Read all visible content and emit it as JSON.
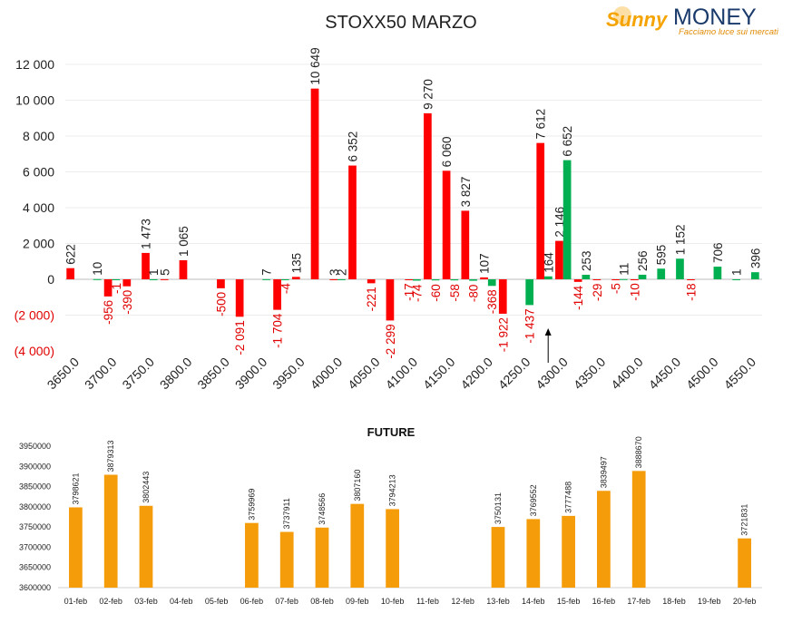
{
  "title": "STOXX50 MARZO",
  "logo": {
    "brand_a": "Sunny",
    "brand_b": "MONEY",
    "tagline": "Facciamo luce sui mercati",
    "color_a": "#f5a300",
    "color_b": "#1a3a6b"
  },
  "colors": {
    "call": "#ff0000",
    "put": "#00b050",
    "negative_axis": "#e00000",
    "future": "#f59c0b"
  },
  "chart_data": [
    {
      "type": "bar",
      "title": "STOXX50 MARZO",
      "ylim": [
        -4000,
        12000
      ],
      "y_ticks": [
        "12 000",
        "10 000",
        "8 000",
        "6 000",
        "4 000",
        "2 000",
        "0",
        "(2 000)",
        "(4 000)"
      ],
      "y_tick_values": [
        12000,
        10000,
        8000,
        6000,
        4000,
        2000,
        0,
        -2000,
        -4000
      ],
      "x_ticks": [
        "3650.0",
        "3700.0",
        "3750.0",
        "3800.0",
        "3850.0",
        "3900.0",
        "3950.0",
        "4000.0",
        "4050.0",
        "4100.0",
        "4150.0",
        "4200.0",
        "4250.0",
        "4300.0",
        "4350.0",
        "4400.0",
        "4450.0",
        "4500.0",
        "4550.0"
      ],
      "categories": [
        3650,
        3675,
        3700,
        3725,
        3750,
        3775,
        3800,
        3825,
        3850,
        3875,
        3900,
        3925,
        3950,
        3975,
        4000,
        4025,
        4050,
        4075,
        4100,
        4125,
        4150,
        4175,
        4200,
        4225,
        4250,
        4275,
        4300,
        4325,
        4350,
        4375,
        4400,
        4425,
        4450,
        4475,
        4500,
        4525,
        4550
      ],
      "series": [
        {
          "color": "#ff0000",
          "labels": [
            "622",
            "",
            "-956",
            "-390",
            "1 473",
            "5",
            "1 065",
            "",
            "-500",
            "-2 091",
            "",
            "-1 704",
            "135",
            "10 649",
            "3",
            "6 352",
            "-221",
            "-2 299",
            "-17",
            "9 270",
            "6 060",
            "3 827",
            "107",
            "-1 922",
            "",
            "7 612",
            "2 146",
            "-144",
            "-29",
            "-5",
            "-10",
            "",
            "",
            "-18",
            "",
            "",
            ""
          ],
          "values": [
            622,
            0,
            -956,
            -390,
            1473,
            5,
            1065,
            0,
            -500,
            -2091,
            0,
            -1704,
            135,
            10649,
            3,
            6352,
            -221,
            -2299,
            -17,
            9270,
            6060,
            3827,
            107,
            -1922,
            0,
            7612,
            2146,
            -144,
            -29,
            -5,
            -10,
            0,
            0,
            -18,
            0,
            0,
            0
          ]
        },
        {
          "color": "#00b050",
          "labels": [
            "",
            "10",
            "-1",
            "",
            "1",
            "",
            "",
            "",
            "",
            "",
            "7",
            "-4",
            "",
            "",
            "2",
            "",
            "",
            "",
            "-74",
            "-60",
            "-58",
            "-80",
            "-368",
            "",
            "-1 437",
            "164",
            "6 652",
            "253",
            "",
            "11",
            "256",
            "595",
            "1 152",
            "",
            "706",
            "1",
            "396"
          ],
          "values": [
            0,
            10,
            -1,
            0,
            1,
            0,
            0,
            0,
            0,
            0,
            7,
            -4,
            0,
            0,
            2,
            0,
            0,
            0,
            -74,
            -60,
            -58,
            -80,
            -368,
            0,
            -1437,
            164,
            6652,
            253,
            0,
            11,
            256,
            595,
            1152,
            0,
            706,
            1,
            396
          ]
        }
      ],
      "marker_note": "arrow at 4280",
      "marker_x": 4280
    },
    {
      "type": "bar",
      "title": "FUTURE",
      "ylim": [
        3600000,
        3950000
      ],
      "y_ticks": [
        "3950000",
        "3900000",
        "3850000",
        "3800000",
        "3750000",
        "3700000",
        "3650000",
        "3600000"
      ],
      "y_tick_values": [
        3950000,
        3900000,
        3850000,
        3800000,
        3750000,
        3700000,
        3650000,
        3600000
      ],
      "categories": [
        "01-feb",
        "02-feb",
        "03-feb",
        "04-feb",
        "05-feb",
        "06-feb",
        "07-feb",
        "08-feb",
        "09-feb",
        "10-feb",
        "11-feb",
        "12-feb",
        "13-feb",
        "14-feb",
        "15-feb",
        "16-feb",
        "17-feb",
        "18-feb",
        "19-feb",
        "20-feb"
      ],
      "values": [
        3798621,
        3879313,
        3802443,
        null,
        null,
        3759969,
        3737911,
        3748566,
        3807160,
        3794213,
        null,
        null,
        3750131,
        3769552,
        3777488,
        3839497,
        3888670,
        null,
        null,
        3721831
      ],
      "color": "#f59c0b"
    }
  ]
}
